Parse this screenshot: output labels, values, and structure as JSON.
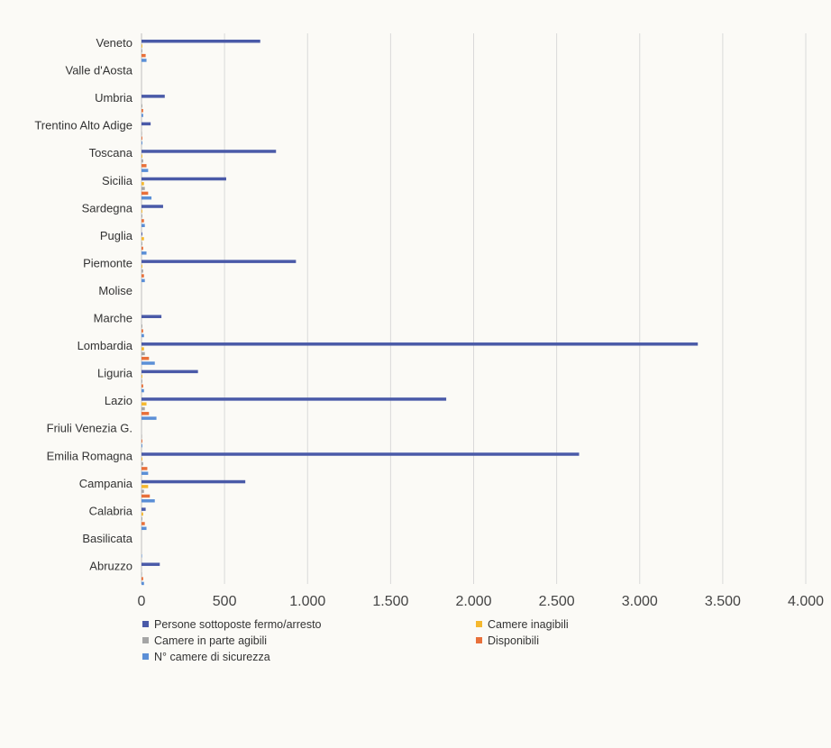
{
  "chart_data": {
    "type": "bar",
    "orientation": "horizontal",
    "title": "",
    "xlabel": "",
    "ylabel": "",
    "categories": [
      "Veneto",
      "Valle d'Aosta",
      "Umbria",
      "Trentino Alto Adige",
      "Toscana",
      "Sicilia",
      "Sardegna",
      "Puglia",
      "Piemonte",
      "Molise",
      "Marche",
      "Lombardia",
      "Liguria",
      "Lazio",
      "Friuli Venezia G.",
      "Emilia Romagna",
      "Campania",
      "Calabria",
      "Basilicata",
      "Abruzzo"
    ],
    "series": [
      {
        "name": "Persone sottoposte fermo/arresto",
        "color": "#4a5aa8",
        "values": [
          715,
          0,
          140,
          55,
          810,
          510,
          130,
          5,
          930,
          0,
          120,
          3350,
          340,
          1835,
          0,
          2635,
          625,
          25,
          0,
          110
        ]
      },
      {
        "name": "Camere inagibili",
        "color": "#f5b82e",
        "values": [
          5,
          0,
          0,
          0,
          5,
          15,
          5,
          15,
          5,
          0,
          0,
          15,
          5,
          30,
          0,
          5,
          40,
          10,
          0,
          0
        ]
      },
      {
        "name": "Camere in parte agibili",
        "color": "#a5a5a5",
        "values": [
          5,
          0,
          5,
          3,
          10,
          20,
          5,
          5,
          10,
          0,
          5,
          20,
          5,
          20,
          3,
          10,
          15,
          5,
          0,
          3
        ]
      },
      {
        "name": "Disponibili",
        "color": "#e8703a",
        "values": [
          25,
          0,
          10,
          5,
          30,
          40,
          15,
          10,
          15,
          0,
          10,
          45,
          10,
          45,
          5,
          35,
          50,
          20,
          0,
          10
        ]
      },
      {
        "name": "N° camere di sicurezza",
        "color": "#5b8fd6",
        "values": [
          30,
          0,
          10,
          5,
          40,
          60,
          20,
          30,
          20,
          0,
          15,
          80,
          15,
          90,
          5,
          40,
          80,
          30,
          3,
          15
        ]
      }
    ],
    "xlim": [
      0,
      4000
    ],
    "xticks": [
      0,
      500,
      1000,
      1500,
      2000,
      2500,
      3000,
      3500,
      4000
    ],
    "xtick_labels": [
      "0",
      "500",
      "1.000",
      "1.500",
      "2.000",
      "2.500",
      "3.000",
      "3.500",
      "4.000"
    ],
    "grid": "vertical",
    "legend_position": "bottom"
  },
  "legend": [
    {
      "label": "Persone sottoposte fermo/arresto",
      "color": "#4a5aa8"
    },
    {
      "label": "Camere inagibili",
      "color": "#f5b82e"
    },
    {
      "label": "Camere in parte agibili",
      "color": "#a5a5a5"
    },
    {
      "label": "Disponibili",
      "color": "#e8703a"
    },
    {
      "label": "N° camere di sicurezza",
      "color": "#5b8fd6"
    }
  ]
}
